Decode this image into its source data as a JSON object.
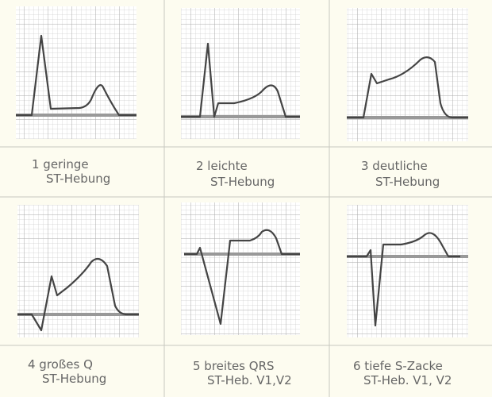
{
  "panels": [
    {
      "line1": "1 geringe",
      "line2": "ST-Hebung"
    },
    {
      "line1": "2 leichte",
      "line2": "ST-Hebung"
    },
    {
      "line1": "3 deutliche",
      "line2": "ST-Hebung"
    },
    {
      "line1": "4 großes Q",
      "line2": "ST-Hebung"
    },
    {
      "line1": "5 breites QRS",
      "line2": "ST-Heb. V1,V2"
    },
    {
      "line1": "6 tiefe S-Zacke",
      "line2": "ST-Heb. V1, V2"
    }
  ]
}
